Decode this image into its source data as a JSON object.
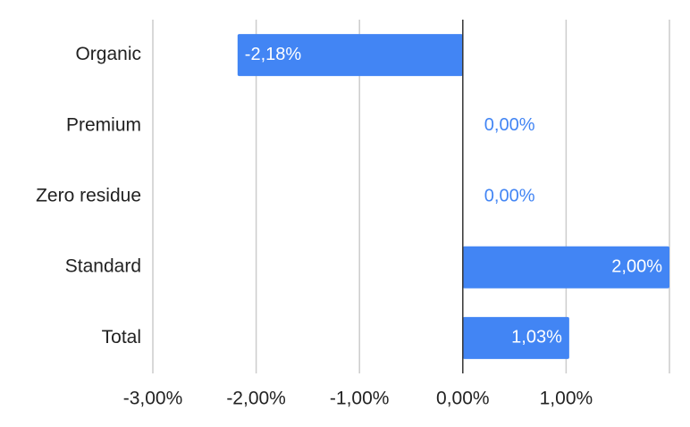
{
  "chart_data": {
    "type": "bar",
    "orientation": "horizontal",
    "categories": [
      "Organic",
      "Premium",
      "Zero residue",
      "Standard",
      "Total"
    ],
    "values": [
      -2.18,
      0.0,
      0.0,
      2.0,
      1.03
    ],
    "data_labels": [
      "-2,18%",
      "0,00%",
      "0,00%",
      "2,00%",
      "1,03%"
    ],
    "x_ticks": [
      -3,
      -2,
      -1,
      0,
      1
    ],
    "x_tick_labels": [
      "-3,00%",
      "-2,00%",
      "-1,00%",
      "0,00%",
      "1,00%"
    ],
    "xlim": [
      -3,
      2
    ],
    "grid": true,
    "legend": "none",
    "title": "",
    "xlabel": "",
    "ylabel": ""
  },
  "colors": {
    "bar": "#4285f4",
    "label_inside": "#ffffff",
    "label_outside": "#4285f4",
    "grid": "#cccccc",
    "zero_line": "#333333",
    "text": "#222222"
  }
}
